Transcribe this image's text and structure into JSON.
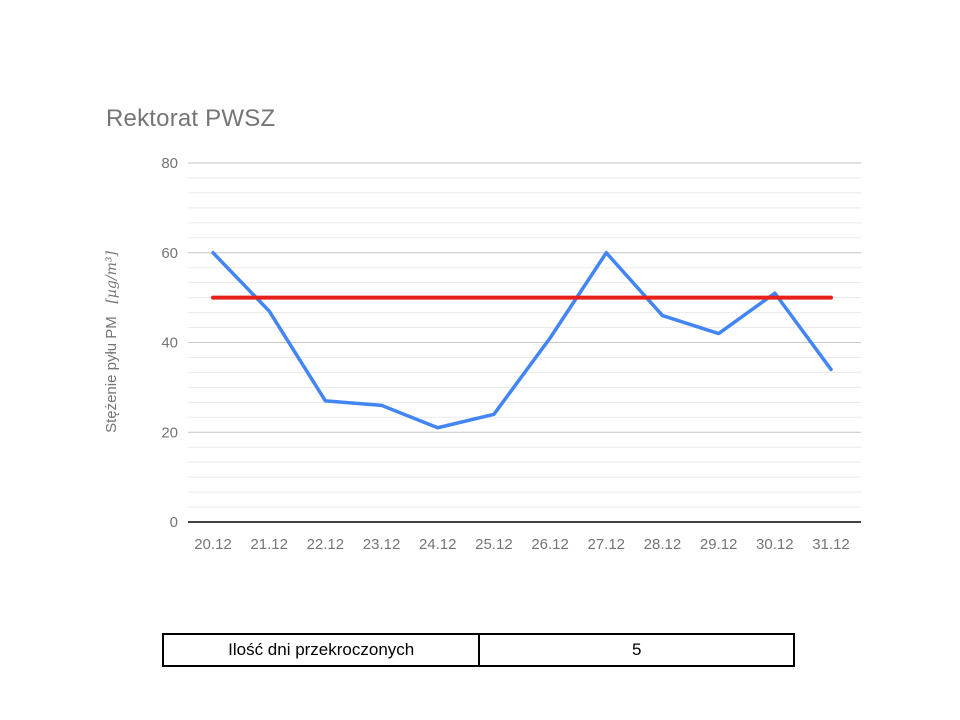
{
  "chart_data": {
    "type": "line",
    "title": "Rektorat PWSZ",
    "x_categories": [
      "20.12",
      "21.12",
      "22.12",
      "23.12",
      "24.12",
      "25.12",
      "26.12",
      "27.12",
      "28.12",
      "29.12",
      "30.12",
      "31.12"
    ],
    "series": [
      {
        "id": "pm-concentration",
        "color": "#4285f4",
        "width": 3.5,
        "values": [
          60,
          47,
          27,
          26,
          21,
          24,
          41,
          60,
          46,
          42,
          51,
          34
        ]
      },
      {
        "id": "limit-line",
        "color": "#e8201a",
        "width": 4,
        "values": [
          50,
          50,
          50,
          50,
          50,
          50,
          50,
          50,
          50,
          50,
          50,
          50
        ]
      }
    ],
    "ylabel_text": "Stężenie pyłu PM",
    "ylabel_unit": "[µg/m³]",
    "y_ticks": [
      0,
      20,
      40,
      60,
      80
    ],
    "ylim": [
      0,
      80
    ],
    "minor_gridline_subdivisions": 6,
    "grid": true,
    "legend": "none",
    "colors": {
      "major_gridline": "#c6c6c6",
      "minor_gridline": "#eaeaea",
      "axis_line": "#424242",
      "tick_text": "#757575",
      "title_text": "#757575"
    }
  },
  "table": {
    "rows": [
      {
        "label": "Ilość dni przekroczonych",
        "value": "5"
      }
    ]
  }
}
